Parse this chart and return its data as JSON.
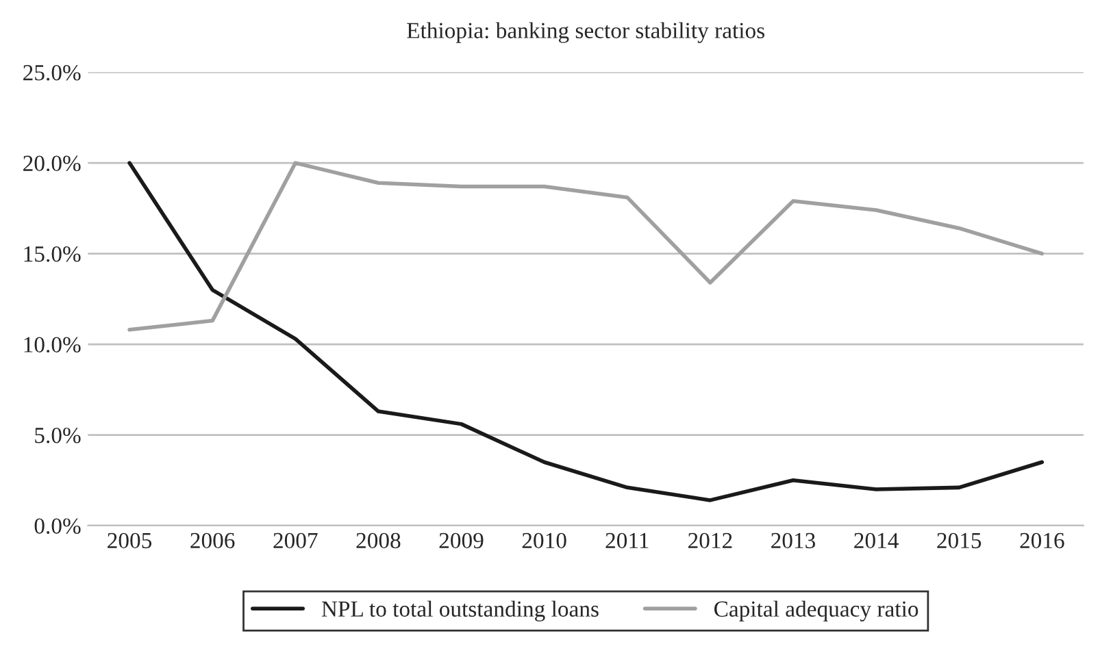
{
  "chart_data": {
    "type": "line",
    "title": "Ethiopia: banking sector stability ratios",
    "categories": [
      "2005",
      "2006",
      "2007",
      "2008",
      "2009",
      "2010",
      "2011",
      "2012",
      "2013",
      "2014",
      "2015",
      "2016"
    ],
    "series": [
      {
        "name": "NPL to total outstanding loans",
        "color": "#1a1a1a",
        "values": [
          20.0,
          13.0,
          10.3,
          6.3,
          5.6,
          3.5,
          2.1,
          1.4,
          2.5,
          2.0,
          2.1,
          3.5
        ]
      },
      {
        "name": "Capital adequacy ratio",
        "color": "#a0a0a0",
        "values": [
          10.8,
          11.3,
          20.0,
          18.9,
          18.7,
          18.7,
          18.1,
          13.4,
          17.9,
          17.4,
          16.4,
          15.0
        ]
      }
    ],
    "ylim": [
      0,
      25
    ],
    "yticks": [
      {
        "value": 0,
        "label": "0.0%"
      },
      {
        "value": 5,
        "label": "5.0%"
      },
      {
        "value": 10,
        "label": "10.0%"
      },
      {
        "value": 15,
        "label": "15.0%"
      },
      {
        "value": 20,
        "label": "20.0%"
      },
      {
        "value": 25,
        "label": "25.0%"
      }
    ],
    "grid": "y",
    "legend": "bottom",
    "marker": "none",
    "line_style": "solid"
  }
}
